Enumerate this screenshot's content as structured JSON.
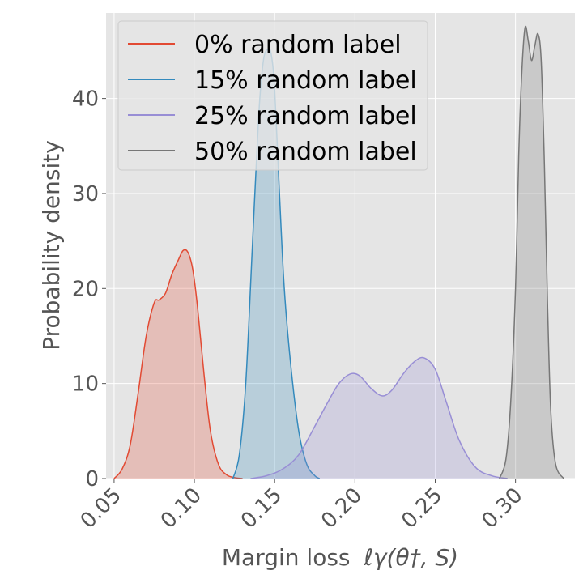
{
  "chart_data": {
    "type": "area",
    "title": "",
    "xlabel": "Margin loss",
    "xlabel_math": "ℓγ(θ†, S)",
    "ylabel": "Probability density",
    "xlim": [
      0.045,
      0.337
    ],
    "ylim": [
      0,
      49
    ],
    "xticks": [
      "0.05",
      "0.10",
      "0.15",
      "0.20",
      "0.25",
      "0.30"
    ],
    "yticks": [
      "0",
      "10",
      "20",
      "30",
      "40"
    ],
    "grid": true,
    "legend_position": "top-left",
    "series": [
      {
        "name": "0% random label",
        "color": "#e24a33",
        "x": [
          0.05,
          0.055,
          0.06,
          0.065,
          0.07,
          0.075,
          0.078,
          0.082,
          0.086,
          0.09,
          0.093,
          0.096,
          0.099,
          0.102,
          0.106,
          0.11,
          0.115,
          0.12,
          0.125,
          0.13
        ],
        "y": [
          0.0,
          1.0,
          3.5,
          9.0,
          15.0,
          18.5,
          18.8,
          19.5,
          21.5,
          23.0,
          24.0,
          23.8,
          22.0,
          18.0,
          11.0,
          5.0,
          1.5,
          0.4,
          0.1,
          0.0
        ]
      },
      {
        "name": "15% random label",
        "color": "#348abd",
        "x": [
          0.124,
          0.128,
          0.132,
          0.136,
          0.14,
          0.143,
          0.146,
          0.148,
          0.15,
          0.153,
          0.156,
          0.16,
          0.165,
          0.17,
          0.175,
          0.178
        ],
        "y": [
          0.0,
          2.5,
          10.0,
          24.0,
          38.0,
          44.0,
          45.2,
          44.5,
          41.0,
          30.0,
          20.0,
          12.0,
          5.0,
          1.5,
          0.3,
          0.0
        ]
      },
      {
        "name": "25% random label",
        "color": "#988ed5",
        "x": [
          0.135,
          0.145,
          0.155,
          0.165,
          0.175,
          0.183,
          0.19,
          0.197,
          0.203,
          0.21,
          0.217,
          0.223,
          0.23,
          0.237,
          0.243,
          0.25,
          0.257,
          0.265,
          0.275,
          0.285,
          0.295
        ],
        "y": [
          0.0,
          0.3,
          1.0,
          2.5,
          5.5,
          8.0,
          10.0,
          11.0,
          10.8,
          9.5,
          8.7,
          9.3,
          11.0,
          12.3,
          12.7,
          11.5,
          8.0,
          4.0,
          1.2,
          0.3,
          0.0
        ]
      },
      {
        "name": "50% random label",
        "color": "#777777",
        "x": [
          0.29,
          0.294,
          0.297,
          0.3,
          0.302,
          0.304,
          0.306,
          0.308,
          0.31,
          0.312,
          0.314,
          0.316,
          0.318,
          0.32,
          0.322,
          0.325,
          0.33
        ],
        "y": [
          0.0,
          2.0,
          8.0,
          20.0,
          34.0,
          43.0,
          47.5,
          46.0,
          44.0,
          45.5,
          46.8,
          44.0,
          33.0,
          18.0,
          7.0,
          1.5,
          0.0
        ]
      }
    ]
  }
}
